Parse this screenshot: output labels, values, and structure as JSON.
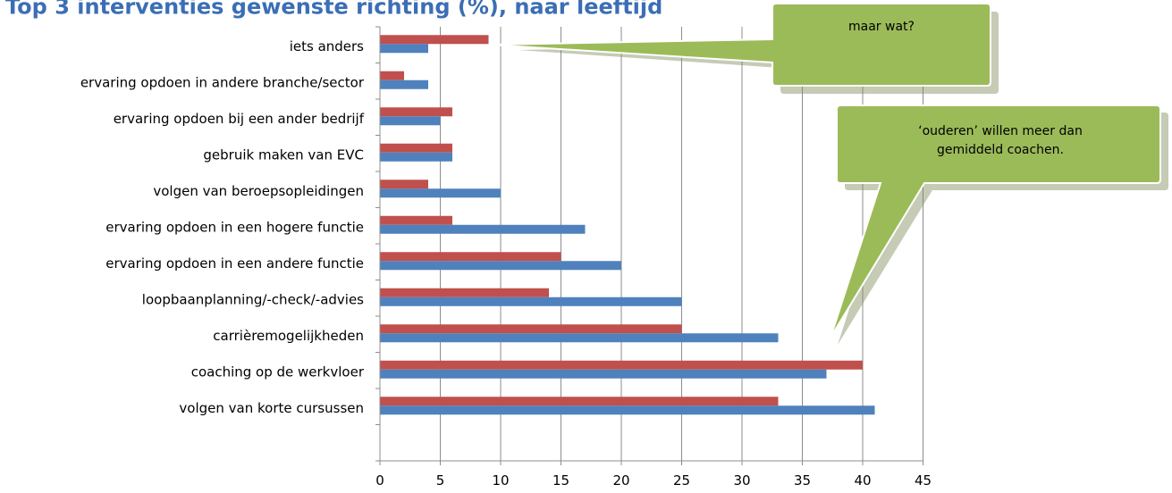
{
  "page_title": "Top 3 interventies gewenste richting (%), naar leeftijd",
  "chart_data": {
    "type": "bar",
    "orientation": "horizontal",
    "categories": [
      "iets anders",
      "ervaring opdoen in andere branche/sector",
      "ervaring opdoen bij een ander bedrijf",
      "gebruik maken van EVC",
      "volgen van beroepsopleidingen",
      "ervaring opdoen in een hogere functie",
      "ervaring opdoen in een andere functie",
      "loopbaanplanning/-check/-advies",
      "carrièremogelijkheden",
      "coaching op de werkvloer",
      "volgen van korte cursussen"
    ],
    "series": [
      {
        "color": "#c0504d",
        "values": [
          9,
          2,
          6,
          6,
          4,
          6,
          15,
          14,
          25,
          40,
          33
        ]
      },
      {
        "color": "#4f81bd",
        "values": [
          4,
          4,
          5,
          6,
          10,
          17,
          20,
          25,
          33,
          37,
          41
        ]
      }
    ],
    "xlim": [
      0,
      45
    ],
    "x_ticks": [
      "0",
      "5",
      "10",
      "15",
      "20",
      "25",
      "30",
      "35",
      "40",
      "45"
    ],
    "grid": "vertical",
    "legend": "none"
  },
  "callouts": [
    {
      "text": "maar wat?"
    },
    {
      "line1": "‘ouderen’ willen meer dan",
      "line2": "gemiddeld coachen."
    }
  ],
  "callout_color": "#9bbb59"
}
